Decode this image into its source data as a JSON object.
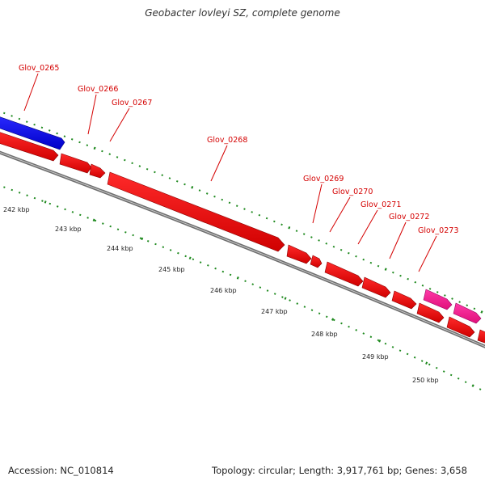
{
  "title": "Geobacter lovleyi SZ, complete genome",
  "footer": {
    "accession": "Accession: NC_010814",
    "summary": "Topology: circular; Length: 3,917,761 bp; Genes: 3,658"
  },
  "colors": {
    "gene_label": "#d40000",
    "cds": "#ff0000",
    "cds_alt": "#0000ff",
    "cds_pink": "#ff1493",
    "backbone": "#808080",
    "dotted_track": "#1f8a1f"
  },
  "scale_labels": [
    "242 kbp",
    "243 kbp",
    "244 kbp",
    "245 kbp",
    "246 kbp",
    "247 kbp",
    "248 kbp",
    "249 kbp",
    "250 kbp"
  ],
  "gene_labels": [
    "Glov_0265",
    "Glov_0266",
    "Glov_0267",
    "Glov_0268",
    "Glov_0269",
    "Glov_0270",
    "Glov_0271",
    "Glov_0272",
    "Glov_0273"
  ]
}
